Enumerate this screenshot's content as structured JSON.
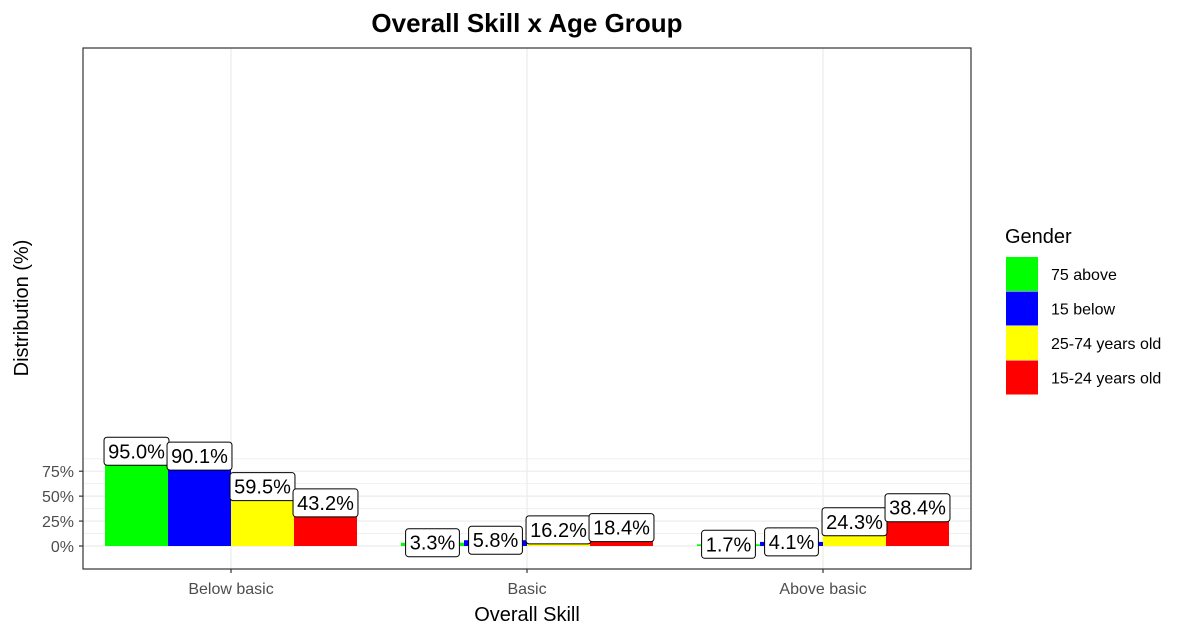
{
  "chart_data": {
    "type": "bar",
    "title": "Overall Skill x Age Group",
    "xlabel": "Overall Skill",
    "ylabel": "Distribution (%)",
    "categories": [
      "Below basic",
      "Basic",
      "Above basic"
    ],
    "ylim": [
      -4,
      100
    ],
    "yticks": [
      0,
      25,
      50,
      75
    ],
    "ytick_labels": [
      "0%",
      "25%",
      "50%",
      "75%"
    ],
    "grid": true,
    "legend": {
      "title": "Gender",
      "placement": "right"
    },
    "series": [
      {
        "name": "75 above",
        "color": "#00ff00",
        "values": [
          95.0,
          3.3,
          1.7
        ],
        "labels": [
          "95.0%",
          "3.3%",
          "1.7%"
        ]
      },
      {
        "name": "15 below",
        "color": "#0000ff",
        "values": [
          90.1,
          5.8,
          4.1
        ],
        "labels": [
          "90.1%",
          "5.8%",
          "4.1%"
        ]
      },
      {
        "name": "25-74 years old",
        "color": "#ffff00",
        "values": [
          59.5,
          16.2,
          24.3
        ],
        "labels": [
          "59.5%",
          "16.2%",
          "24.3%"
        ]
      },
      {
        "name": "15-24 years old",
        "color": "#ff0000",
        "values": [
          43.2,
          18.4,
          38.4
        ],
        "labels": [
          "43.2%",
          "18.4%",
          "38.4%"
        ]
      }
    ]
  }
}
